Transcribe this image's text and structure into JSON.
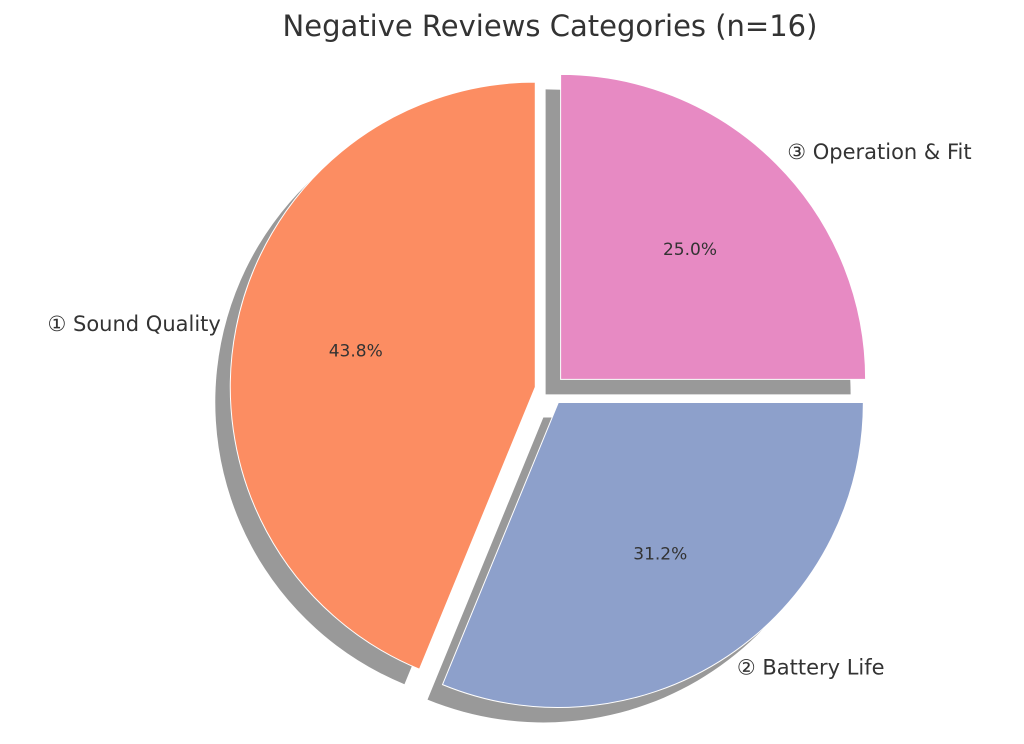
{
  "chart_data": {
    "type": "pie",
    "title": "Negative Reviews Categories (n=16)",
    "categories": [
      "① Sound Quality",
      "② Battery Life",
      "③ Operation & Fit"
    ],
    "values": [
      43.8,
      31.2,
      25.0
    ],
    "value_labels": [
      "43.8%",
      "31.2%",
      "25.0%"
    ],
    "colors": [
      "#fc8d62",
      "#8da0cb",
      "#e78ac3"
    ],
    "shadow": true
  }
}
